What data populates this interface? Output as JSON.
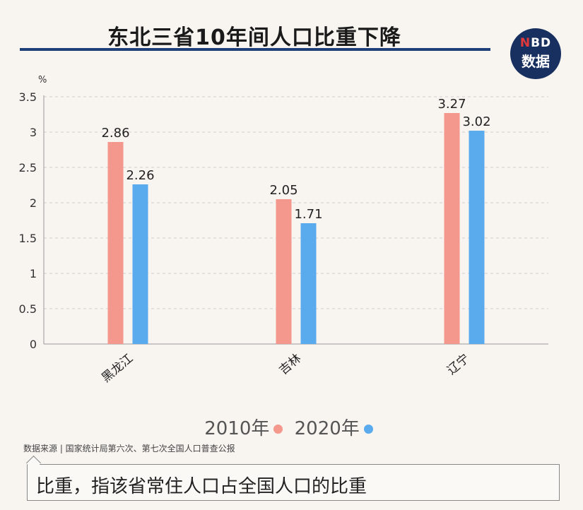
{
  "title": "东北三省10年间人口比重下降",
  "logo": {
    "line1_accent": "N",
    "line1_rest": "BD",
    "line2": "数据"
  },
  "chart_data": {
    "type": "bar",
    "title": "东北三省10年间人口比重下降",
    "ylabel": "%",
    "xlabel": "",
    "ylim": [
      0,
      3.5
    ],
    "yticks": [
      "0",
      "0.5",
      "1",
      "1.5",
      "2",
      "2.5",
      "3",
      "3.5"
    ],
    "grid": true,
    "legend_placement": "bottom",
    "categories": [
      "黑龙江",
      "吉林",
      "辽宁"
    ],
    "series": [
      {
        "name": "2010年",
        "color": "#f4978c",
        "values": [
          2.86,
          2.05,
          3.27
        ]
      },
      {
        "name": "2020年",
        "color": "#5aabee",
        "values": [
          2.26,
          1.71,
          3.02
        ]
      }
    ]
  },
  "legend": {
    "items": [
      "2010年",
      "2020年"
    ]
  },
  "source": "数据来源 | 国家统计局第六次、第七次全国人口普查公报",
  "note": "比重，指该省常住人口占全国人口的比重"
}
